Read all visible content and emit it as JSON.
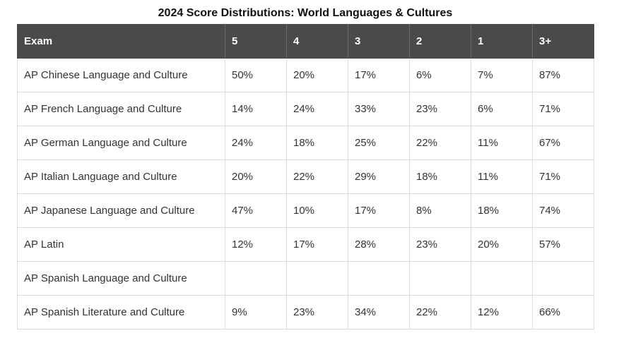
{
  "title": "2024 Score Distributions: World Languages & Cultures",
  "table": {
    "headers": [
      "Exam",
      "5",
      "4",
      "3",
      "2",
      "1",
      "3+"
    ],
    "rows": [
      [
        "AP Chinese Language and Culture",
        "50%",
        "20%",
        "17%",
        "6%",
        "7%",
        "87%"
      ],
      [
        "AP French Language and Culture",
        "14%",
        "24%",
        "33%",
        "23%",
        "6%",
        "71%"
      ],
      [
        "AP German Language and Culture",
        "24%",
        "18%",
        "25%",
        "22%",
        "11%",
        "67%"
      ],
      [
        "AP Italian Language and Culture",
        "20%",
        "22%",
        "29%",
        "18%",
        "11%",
        "71%"
      ],
      [
        "AP Japanese Language and Culture",
        "47%",
        "10%",
        "17%",
        "8%",
        "18%",
        "74%"
      ],
      [
        "AP Latin",
        "12%",
        "17%",
        "28%",
        "23%",
        "20%",
        "57%"
      ],
      [
        "AP Spanish Language and Culture",
        "",
        "",
        "",
        "",
        "",
        ""
      ],
      [
        "AP Spanish Literature and Culture",
        "9%",
        "23%",
        "34%",
        "22%",
        "12%",
        "66%"
      ]
    ]
  }
}
